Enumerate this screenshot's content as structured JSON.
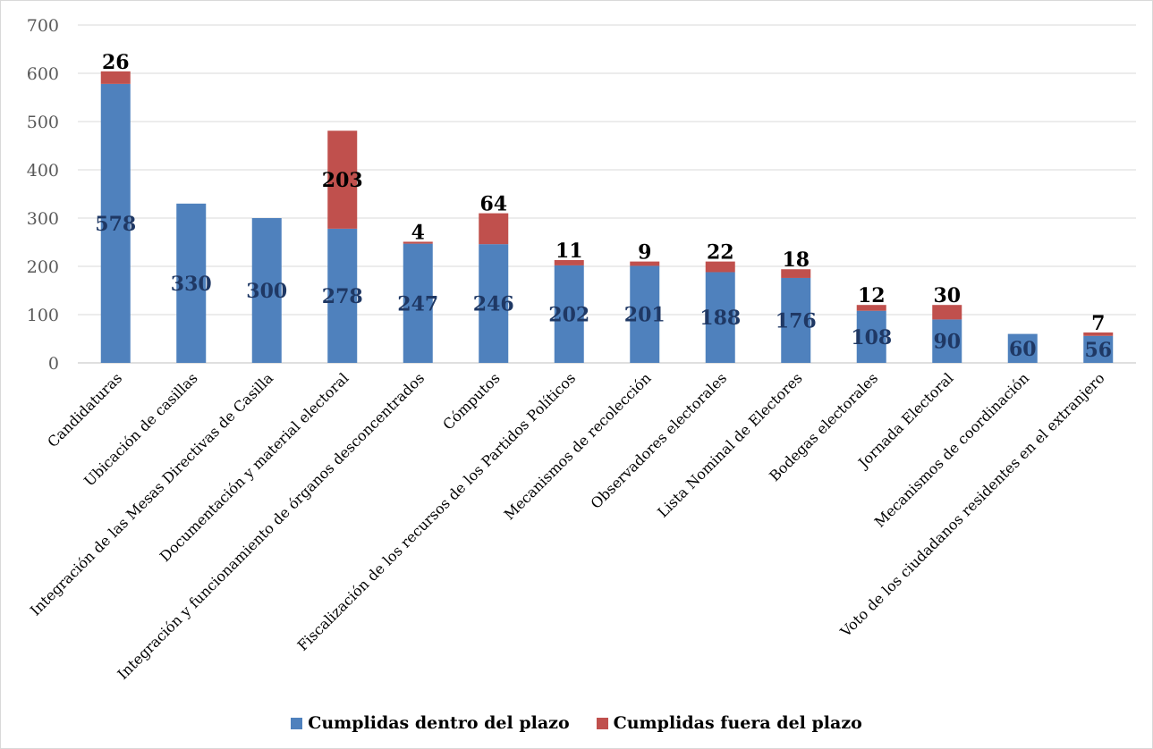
{
  "chart_data": {
    "type": "bar",
    "stacked": true,
    "categories": [
      "Candidaturas",
      "Ubicación de casillas",
      "Integración de las Mesas Directivas de Casilla",
      "Documentación y material electoral",
      "Integración y funcionamiento de órganos desconcentrados",
      "Cómputos",
      "Fiscalización de los recursos de los Partidos Políticos",
      "Mecanismos de recolección",
      "Observadores electorales",
      "Lista Nominal de Electores",
      "Bodegas electorales",
      "Jornada Electoral",
      "Mecanismos de coordinación",
      "Voto de los ciudadanos residentes en el extranjero"
    ],
    "series": [
      {
        "name": "Cumplidas dentro del plazo",
        "color": "#4f81bd",
        "values": [
          578,
          330,
          300,
          278,
          247,
          246,
          202,
          201,
          188,
          176,
          108,
          90,
          60,
          56
        ]
      },
      {
        "name": "Cumplidas fuera del plazo",
        "color": "#c0504d",
        "values": [
          26,
          null,
          null,
          203,
          4,
          64,
          11,
          9,
          22,
          18,
          12,
          30,
          null,
          7
        ]
      }
    ],
    "ylim": [
      0,
      700
    ],
    "yticks": [
      0,
      100,
      200,
      300,
      400,
      500,
      600,
      700
    ],
    "grid": true,
    "legend_position": "bottom",
    "title": "",
    "xlabel": "",
    "ylabel": ""
  }
}
